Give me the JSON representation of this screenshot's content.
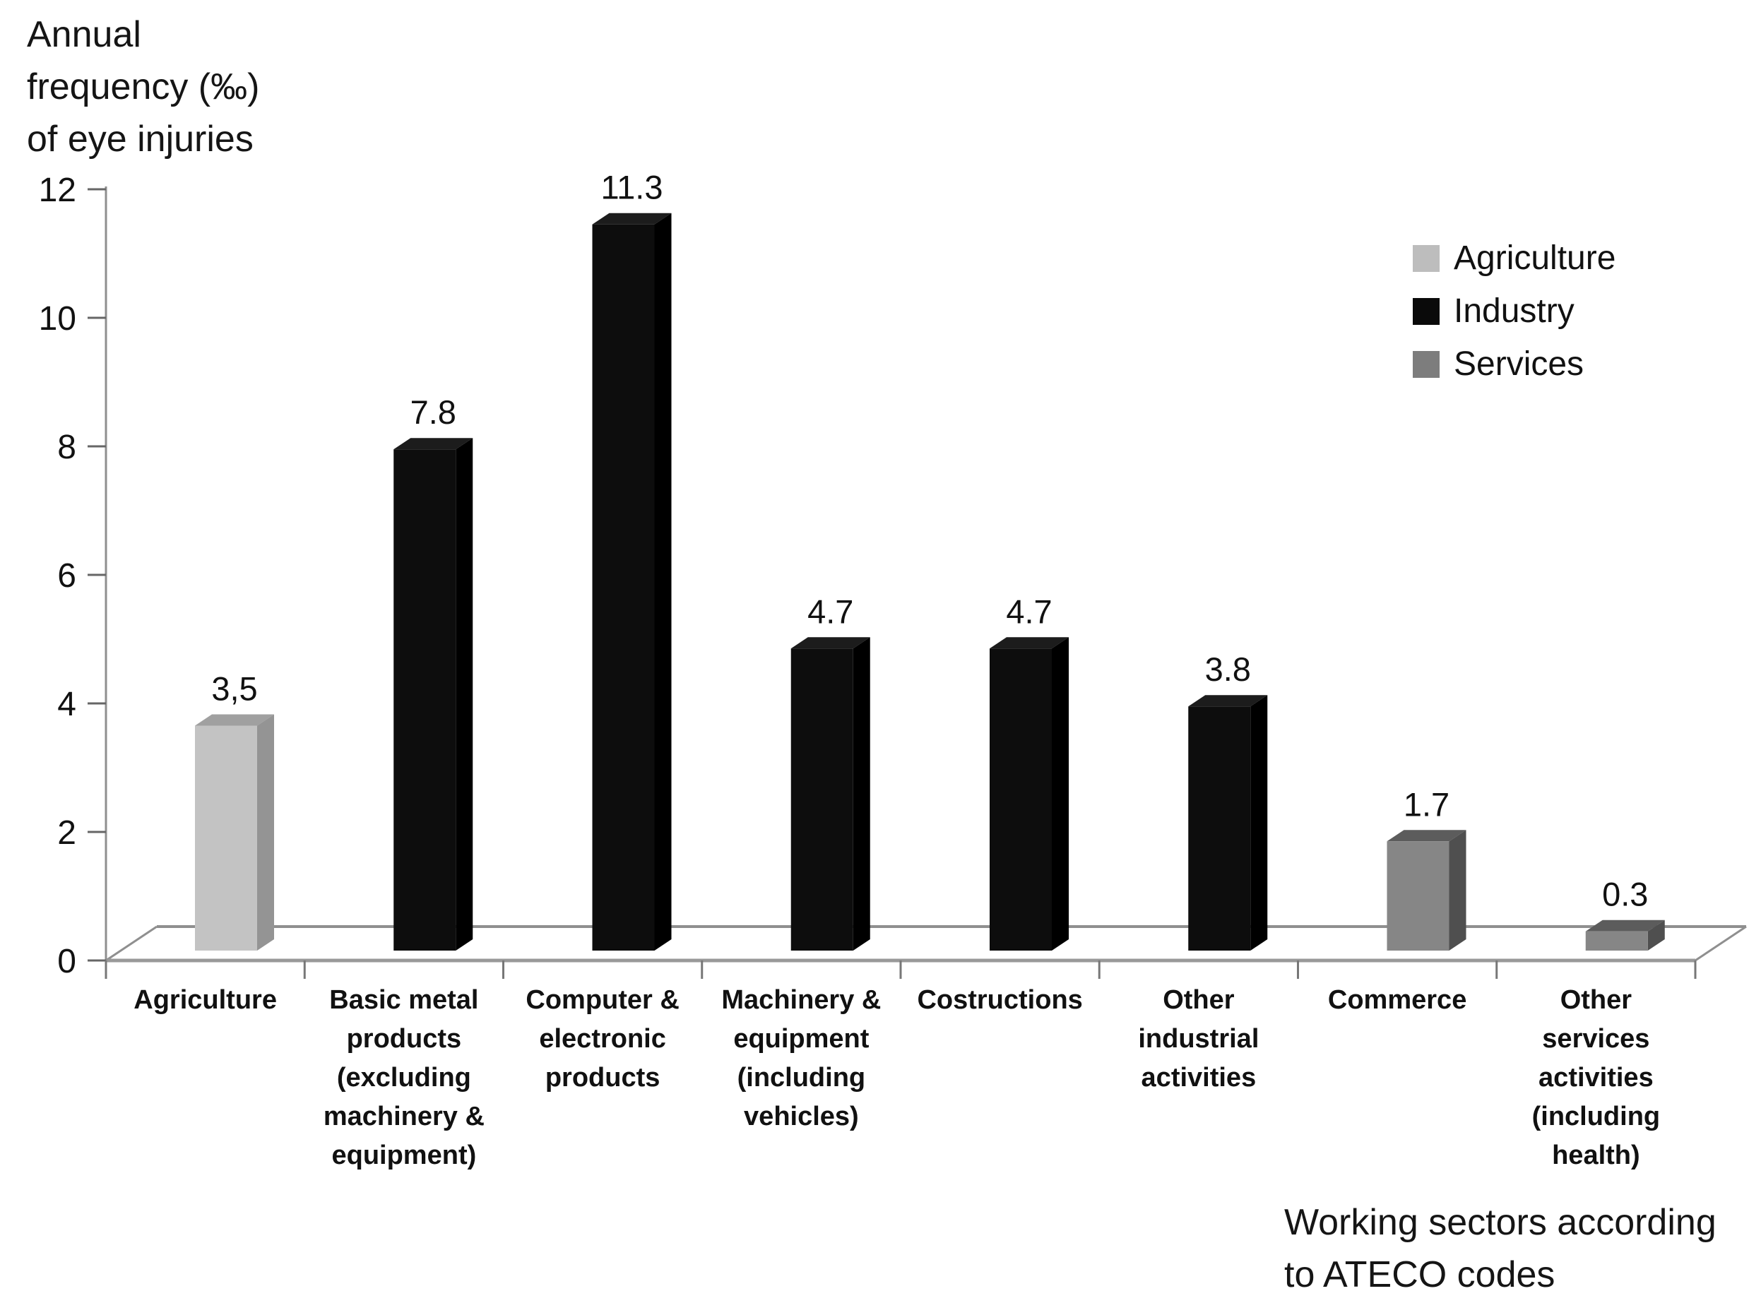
{
  "title_lines": [
    "Annual",
    "frequency (‰)",
    "of eye injuries"
  ],
  "axis_note_lines": [
    "Working sectors according",
    "to ATECO codes"
  ],
  "legend": {
    "items": [
      {
        "label": "Agriculture",
        "color": "#bdbdbd"
      },
      {
        "label": "Industry",
        "color": "#0a0a0a"
      },
      {
        "label": "Services",
        "color": "#7d7d7d"
      }
    ]
  },
  "chart_data": {
    "type": "bar",
    "style": "3d-column",
    "title": "Annual frequency (‰) of eye injuries",
    "ylabel": "Annual frequency (‰) of eye injuries",
    "xlabel": "Working sectors according to ATECO codes",
    "ylim": [
      0,
      12
    ],
    "yticks": [
      0,
      2,
      4,
      6,
      8,
      10,
      12
    ],
    "grid": false,
    "legend_position": "upper-right",
    "legend_entries": [
      "Agriculture",
      "Industry",
      "Services"
    ],
    "categories": [
      "Agriculture",
      "Basic metal products (excluding machinery & equipment)",
      "Computer & electronic products",
      "Machinery & equipment (including vehicles)",
      "Costructions",
      "Other industrial activities",
      "Commerce",
      "Other services activities (including health)"
    ],
    "category_label_lines": [
      [
        "Agriculture"
      ],
      [
        "Basic metal",
        "products",
        "(excluding",
        "machinery &",
        "equipment)"
      ],
      [
        "Computer &",
        "electronic",
        "products"
      ],
      [
        "Machinery &",
        "equipment",
        "(including",
        "vehicles)"
      ],
      [
        "Costructions"
      ],
      [
        "Other",
        "industrial",
        "activities"
      ],
      [
        "Commerce"
      ],
      [
        "Other",
        "services",
        "activities",
        "(including",
        "health)"
      ]
    ],
    "values": [
      3.5,
      7.8,
      11.3,
      4.7,
      4.7,
      3.8,
      1.7,
      0.3
    ],
    "value_labels": [
      "3,5",
      "7.8",
      "11.3",
      "4.7",
      "4.7",
      "3.8",
      "1.7",
      "0.3"
    ],
    "bar_series": [
      "Agriculture",
      "Industry",
      "Industry",
      "Industry",
      "Industry",
      "Industry",
      "Services",
      "Services"
    ],
    "series_colors": {
      "Agriculture": {
        "front": "#c3c3c3",
        "top": "#a0a0a0",
        "side": "#949494"
      },
      "Industry": {
        "front": "#0d0d0d",
        "top": "#1c1c1c",
        "side": "#000000"
      },
      "Services": {
        "front": "#868686",
        "top": "#5c5c5c",
        "side": "#4f4f4f"
      }
    },
    "text_color": "#111111",
    "line_color": "#8f8f8f"
  }
}
